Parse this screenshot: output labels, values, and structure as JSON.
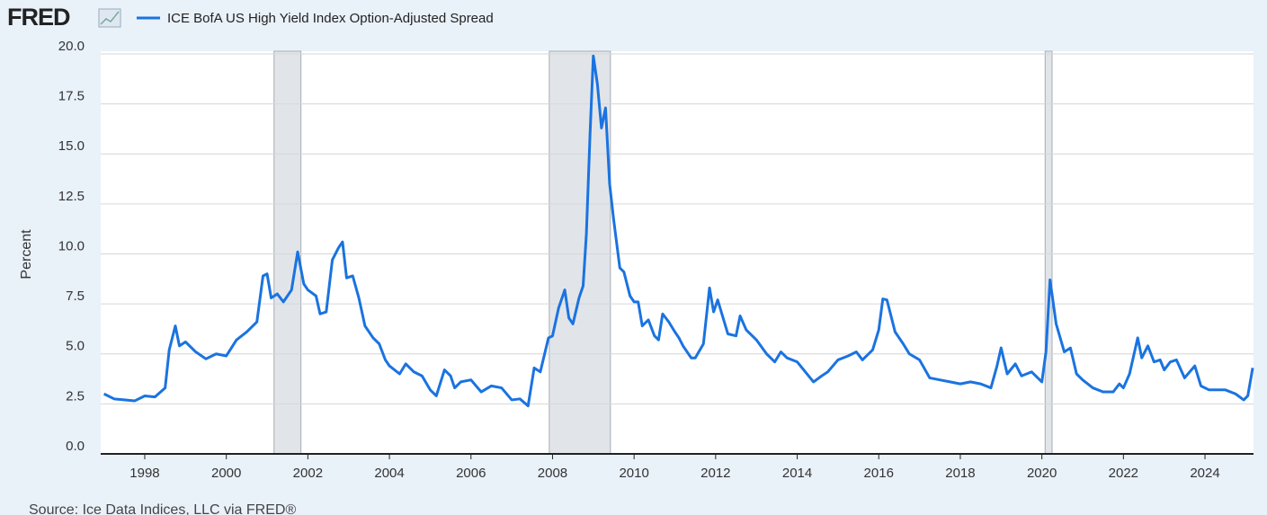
{
  "logo": "FRED",
  "source": "Source: Ice Data Indices, LLC via FRED®",
  "chart_data": {
    "type": "line",
    "y_label": "Percent",
    "xlim": [
      1996.92,
      2025.19
    ],
    "ylim": [
      0,
      20
    ],
    "xticks": [
      1998,
      2000,
      2002,
      2004,
      2006,
      2008,
      2010,
      2012,
      2014,
      2016,
      2018,
      2020,
      2022,
      2024
    ],
    "yticks": [
      {
        "value": 0,
        "label": "0.0"
      },
      2.5,
      {
        "value": 5,
        "label": "5.0"
      },
      7.5,
      {
        "value": 10,
        "label": "10.0"
      },
      12.5,
      {
        "value": 15,
        "label": "15.0"
      },
      17.5,
      {
        "value": 20,
        "label": "20.0"
      }
    ],
    "grid": true,
    "recessions": [
      [
        2001.17,
        2001.83
      ],
      [
        2007.92,
        2009.42
      ],
      [
        2020.08,
        2020.25
      ]
    ],
    "x": [
      1997.0,
      1997.25,
      1997.5,
      1997.75,
      1998.0,
      1998.25,
      1998.5,
      1998.6,
      1998.75,
      1998.85,
      1999.0,
      1999.25,
      1999.5,
      1999.75,
      2000.0,
      2000.25,
      2000.5,
      2000.75,
      2000.9,
      2001.0,
      2001.1,
      2001.25,
      2001.4,
      2001.6,
      2001.75,
      2001.9,
      2002.0,
      2002.2,
      2002.3,
      2002.45,
      2002.6,
      2002.75,
      2002.85,
      2002.95,
      2003.1,
      2003.25,
      2003.4,
      2003.6,
      2003.75,
      2003.9,
      2004.0,
      2004.25,
      2004.4,
      2004.6,
      2004.8,
      2005.0,
      2005.15,
      2005.35,
      2005.5,
      2005.6,
      2005.75,
      2006.0,
      2006.25,
      2006.5,
      2006.75,
      2007.0,
      2007.2,
      2007.4,
      2007.55,
      2007.7,
      2007.9,
      2008.0,
      2008.15,
      2008.3,
      2008.4,
      2008.5,
      2008.65,
      2008.75,
      2008.83,
      2008.92,
      2009.0,
      2009.1,
      2009.2,
      2009.3,
      2009.4,
      2009.5,
      2009.65,
      2009.75,
      2009.9,
      2010.0,
      2010.1,
      2010.2,
      2010.35,
      2010.5,
      2010.6,
      2010.7,
      2010.85,
      2011.0,
      2011.1,
      2011.2,
      2011.4,
      2011.5,
      2011.7,
      2011.85,
      2011.95,
      2012.05,
      2012.3,
      2012.5,
      2012.6,
      2012.75,
      2013.0,
      2013.25,
      2013.45,
      2013.6,
      2013.75,
      2014.0,
      2014.2,
      2014.4,
      2014.6,
      2014.75,
      2015.0,
      2015.25,
      2015.45,
      2015.6,
      2015.85,
      2016.0,
      2016.1,
      2016.2,
      2016.4,
      2016.6,
      2016.75,
      2017.0,
      2017.25,
      2017.5,
      2017.75,
      2018.0,
      2018.25,
      2018.5,
      2018.75,
      2018.9,
      2019.0,
      2019.15,
      2019.35,
      2019.5,
      2019.75,
      2020.0,
      2020.1,
      2020.2,
      2020.35,
      2020.55,
      2020.7,
      2020.85,
      2021.0,
      2021.25,
      2021.5,
      2021.75,
      2021.9,
      2022.0,
      2022.15,
      2022.35,
      2022.45,
      2022.6,
      2022.75,
      2022.9,
      2023.0,
      2023.15,
      2023.3,
      2023.5,
      2023.75,
      2023.9,
      2024.1,
      2024.5,
      2024.75,
      2024.95,
      2025.05,
      2025.17
    ],
    "series": [
      {
        "name": "ICE BofA US High Yield Index Option-Adjusted Spread",
        "color": "#1a73e0",
        "values": [
          3.0,
          2.75,
          2.7,
          2.65,
          2.9,
          2.85,
          3.3,
          5.2,
          6.4,
          5.4,
          5.6,
          5.1,
          4.75,
          5.0,
          4.9,
          5.7,
          6.1,
          6.6,
          8.9,
          9.0,
          7.8,
          8.0,
          7.6,
          8.2,
          10.1,
          8.5,
          8.2,
          7.9,
          7.0,
          7.1,
          9.7,
          10.3,
          10.6,
          8.8,
          8.9,
          7.8,
          6.4,
          5.8,
          5.5,
          4.7,
          4.4,
          4.0,
          4.5,
          4.1,
          3.9,
          3.2,
          2.9,
          4.2,
          3.9,
          3.3,
          3.6,
          3.7,
          3.1,
          3.4,
          3.3,
          2.7,
          2.75,
          2.4,
          4.3,
          4.1,
          5.8,
          5.9,
          7.3,
          8.2,
          6.8,
          6.5,
          7.8,
          8.4,
          11.0,
          16.0,
          19.9,
          18.5,
          16.3,
          17.3,
          13.5,
          11.7,
          9.3,
          9.1,
          7.9,
          7.6,
          7.6,
          6.4,
          6.7,
          5.9,
          5.7,
          7.0,
          6.6,
          6.1,
          5.8,
          5.4,
          4.8,
          4.8,
          5.5,
          8.3,
          7.1,
          7.7,
          6.0,
          5.9,
          6.9,
          6.2,
          5.7,
          5.0,
          4.6,
          5.1,
          4.8,
          4.6,
          4.1,
          3.6,
          3.9,
          4.1,
          4.7,
          4.9,
          5.1,
          4.7,
          5.2,
          6.2,
          7.75,
          7.7,
          6.1,
          5.5,
          5.0,
          4.7,
          3.8,
          3.7,
          3.6,
          3.5,
          3.6,
          3.5,
          3.3,
          4.4,
          5.3,
          4.0,
          4.5,
          3.9,
          4.1,
          3.6,
          5.1,
          8.7,
          6.5,
          5.1,
          5.3,
          4.0,
          3.7,
          3.3,
          3.1,
          3.1,
          3.5,
          3.3,
          4.0,
          5.8,
          4.8,
          5.4,
          4.6,
          4.7,
          4.2,
          4.6,
          4.7,
          3.8,
          4.4,
          3.4,
          3.2,
          3.2,
          3.0,
          2.7,
          2.9,
          4.3
        ]
      }
    ]
  }
}
